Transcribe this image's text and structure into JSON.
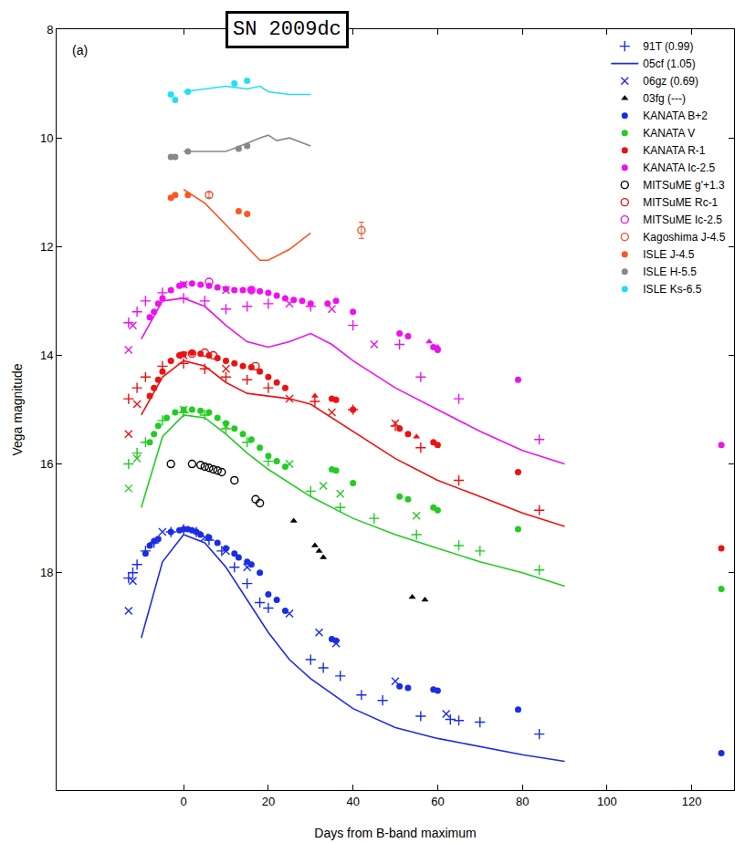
{
  "chart_data": {
    "type": "scatter",
    "title": "SN 2009dc",
    "annotations": [
      "(a)"
    ],
    "x_label": "Days from B-band maximum",
    "y_label": "Vega magnitude",
    "xlim": [
      -30,
      130
    ],
    "xticks": [
      0,
      20,
      40,
      60,
      80,
      100,
      120
    ],
    "ylim": [
      22,
      8
    ],
    "yticks": [
      8,
      10,
      12,
      14,
      16,
      18
    ],
    "grid": false,
    "legend": "upper right",
    "series": [
      {
        "name": "91T (0.99)",
        "marker": "cross-thin-open",
        "groups": [
          {
            "color": "#1a2de6",
            "x": [
              -13,
              -12,
              -11,
              -9,
              -7,
              -3,
              0,
              3,
              6,
              9,
              12,
              15,
              18,
              20,
              30,
              33,
              37,
              42,
              47,
              56,
              63,
              65,
              70,
              84
            ],
            "values": [
              18.1,
              18.0,
              17.85,
              17.6,
              17.45,
              17.25,
              17.2,
              17.25,
              17.4,
              17.6,
              17.9,
              18.2,
              18.55,
              18.65,
              19.6,
              19.75,
              19.9,
              20.25,
              20.35,
              20.64,
              20.7,
              20.72,
              20.75,
              20.97
            ]
          },
          {
            "color": "#22cc22",
            "x": [
              -13,
              -11,
              -9,
              -5,
              0,
              5,
              10,
              15,
              20,
              30,
              37,
              45,
              55,
              65,
              70,
              84
            ],
            "values": [
              16.0,
              15.8,
              15.6,
              15.2,
              15.05,
              15.1,
              15.35,
              15.6,
              15.95,
              16.5,
              16.8,
              17.0,
              17.3,
              17.5,
              17.6,
              17.95
            ]
          },
          {
            "color": "#ee1111",
            "x": [
              -13,
              -11,
              -9,
              -5,
              0,
              5,
              10,
              15,
              20,
              31,
              40,
              50,
              56,
              65,
              84
            ],
            "values": [
              14.8,
              14.6,
              14.4,
              14.2,
              14.15,
              14.25,
              14.4,
              14.45,
              14.6,
              14.85,
              15.0,
              15.3,
              15.7,
              16.3,
              16.85
            ]
          },
          {
            "color": "#ee11ee",
            "x": [
              -13,
              -11,
              -9,
              -5,
              0,
              5,
              10,
              15,
              20,
              30,
              40,
              51,
              56,
              65,
              84
            ],
            "values": [
              13.4,
              13.2,
              13.0,
              12.85,
              12.95,
              13.0,
              13.15,
              13.1,
              13.05,
              13.1,
              13.45,
              13.8,
              14.4,
              14.8,
              15.55
            ]
          }
        ]
      },
      {
        "name": "05cf (1.05)",
        "line_style": "solid",
        "groups": [
          {
            "color": "#1a2de6",
            "x": [
              -10,
              -5,
              0,
              5,
              10,
              15,
              20,
              25,
              30,
              40,
              50,
              60,
              70,
              80,
              90
            ],
            "values": [
              19.2,
              17.8,
              17.3,
              17.45,
              17.9,
              18.5,
              19.1,
              19.6,
              19.95,
              20.5,
              20.85,
              21.05,
              21.2,
              21.35,
              21.47
            ]
          },
          {
            "color": "#22cc22",
            "x": [
              -10,
              -5,
              0,
              5,
              10,
              15,
              20,
              25,
              30,
              40,
              50,
              60,
              70,
              80,
              90
            ],
            "values": [
              16.8,
              15.5,
              15.1,
              15.15,
              15.45,
              15.8,
              16.1,
              16.35,
              16.6,
              17.0,
              17.3,
              17.55,
              17.8,
              18.0,
              18.25
            ]
          },
          {
            "color": "#ee1111",
            "x": [
              -10,
              -5,
              0,
              5,
              10,
              15,
              20,
              25,
              30,
              40,
              50,
              60,
              70,
              80,
              90
            ],
            "values": [
              15.1,
              14.4,
              14.1,
              14.2,
              14.5,
              14.7,
              14.75,
              14.8,
              14.9,
              15.4,
              15.9,
              16.3,
              16.6,
              16.9,
              17.15
            ]
          },
          {
            "color": "#ee11ee",
            "x": [
              -10,
              -5,
              0,
              5,
              10,
              15,
              20,
              25,
              30,
              35,
              40,
              50,
              60,
              70,
              80,
              90
            ],
            "values": [
              13.7,
              13.0,
              12.95,
              13.1,
              13.45,
              13.75,
              13.85,
              13.75,
              13.6,
              13.8,
              14.1,
              14.6,
              15.0,
              15.4,
              15.75,
              16.0
            ]
          },
          {
            "color": "#ff5522",
            "x": [
              0,
              5,
              10,
              15,
              18,
              20,
              25,
              30
            ],
            "values": [
              10.95,
              11.2,
              11.6,
              12.0,
              12.25,
              12.25,
              12.05,
              11.75
            ]
          },
          {
            "color": "#888888",
            "x": [
              0,
              5,
              10,
              15,
              18,
              20,
              22,
              25,
              30
            ],
            "values": [
              10.25,
              10.25,
              10.25,
              10.1,
              10.0,
              9.95,
              10.05,
              10.0,
              10.15
            ]
          },
          {
            "color": "#22e0f0",
            "x": [
              0,
              5,
              10,
              15,
              18,
              20,
              25,
              30
            ],
            "values": [
              9.15,
              9.1,
              9.05,
              9.1,
              9.05,
              9.15,
              9.2,
              9.2
            ]
          }
        ]
      },
      {
        "name": "06gz (0.69)",
        "marker": "x-thin-open",
        "groups": [
          {
            "color": "#1a2de6",
            "x": [
              -13,
              -12,
              -5,
              5,
              10,
              15,
              25,
              32,
              36,
              50,
              62
            ],
            "values": [
              18.7,
              18.15,
              17.25,
              17.35,
              17.6,
              17.9,
              18.75,
              19.1,
              19.3,
              20.0,
              20.6
            ]
          },
          {
            "color": "#22cc22",
            "x": [
              -13,
              -11,
              0,
              10,
              25,
              33,
              37,
              55
            ],
            "values": [
              16.45,
              15.9,
              15.0,
              15.3,
              16.0,
              16.4,
              16.55,
              16.95
            ]
          },
          {
            "color": "#ee1111",
            "x": [
              -13,
              -11,
              0,
              10,
              25,
              35,
              50
            ],
            "values": [
              15.45,
              14.9,
              14.0,
              14.25,
              14.8,
              15.05,
              15.25
            ]
          },
          {
            "color": "#ee11ee",
            "x": [
              -13,
              -12,
              0,
              10,
              25,
              35,
              45
            ],
            "values": [
              13.9,
              13.45,
              12.7,
              12.8,
              13.05,
              13.15,
              13.8
            ]
          }
        ]
      },
      {
        "name": "03fg (---)",
        "marker": "triangle-up",
        "groups": [
          {
            "color": "#000000",
            "x": [
              26,
              31,
              32,
              33,
              54,
              57
            ],
            "values": [
              17.05,
              17.5,
              17.6,
              17.72,
              18.45,
              18.5
            ]
          },
          {
            "color": "#ee1111",
            "x": [
              31,
              55
            ],
            "values": [
              14.75,
              15.5
            ]
          },
          {
            "color": "#ee11ee",
            "x": [
              58,
              60
            ],
            "values": [
              13.75,
              13.85
            ]
          }
        ]
      },
      {
        "name": "KANATA B+2",
        "marker": "circle",
        "groups": [
          {
            "color": "#1a2de6",
            "x": [
              -9,
              -8,
              -7,
              -6,
              -3,
              -1,
              0,
              1,
              2,
              3,
              4,
              6,
              8,
              10,
              12,
              13,
              15,
              16,
              18,
              20,
              22,
              24,
              35,
              36,
              51,
              53,
              59,
              60,
              79,
              127
            ],
            "values": [
              17.65,
              17.5,
              17.42,
              17.38,
              17.25,
              17.22,
              17.2,
              17.2,
              17.22,
              17.25,
              17.3,
              17.35,
              17.45,
              17.55,
              17.65,
              17.72,
              17.8,
              17.85,
              18.0,
              18.4,
              18.5,
              18.7,
              19.22,
              19.25,
              20.09,
              20.12,
              20.15,
              20.17,
              20.52,
              21.32
            ]
          }
        ]
      },
      {
        "name": "KANATA V",
        "marker": "circle",
        "groups": [
          {
            "color": "#22cc22",
            "x": [
              -8,
              -7,
              -6,
              -4,
              -2,
              0,
              2,
              4,
              6,
              8,
              10,
              12,
              14,
              16,
              18,
              20,
              22,
              24,
              35,
              36,
              40,
              51,
              53,
              59,
              60,
              79,
              127
            ],
            "values": [
              15.6,
              15.45,
              15.3,
              15.15,
              15.05,
              15.0,
              15.0,
              15.02,
              15.05,
              15.15,
              15.25,
              15.35,
              15.45,
              15.55,
              15.7,
              15.85,
              15.95,
              16.05,
              16.1,
              16.12,
              16.35,
              16.6,
              16.65,
              16.8,
              16.85,
              17.2,
              18.3
            ]
          }
        ]
      },
      {
        "name": "KANATA R-1",
        "marker": "circle",
        "groups": [
          {
            "color": "#ee1111",
            "x": [
              -8,
              -7,
              -6,
              -5,
              -3,
              -1,
              0,
              2,
              4,
              6,
              8,
              10,
              12,
              14,
              16,
              18,
              20,
              22,
              24,
              35,
              36,
              40,
              51,
              53,
              59,
              60,
              79,
              127
            ],
            "values": [
              14.75,
              14.6,
              14.45,
              14.3,
              14.1,
              14.0,
              13.98,
              13.95,
              13.97,
              14.0,
              14.05,
              14.1,
              14.15,
              14.2,
              14.22,
              14.3,
              14.4,
              14.5,
              14.6,
              14.8,
              14.82,
              15.0,
              15.35,
              15.45,
              15.6,
              15.65,
              16.15,
              17.55
            ]
          }
        ]
      },
      {
        "name": "KANATA Ic-2.5",
        "marker": "circle",
        "groups": [
          {
            "color": "#ee11ee",
            "x": [
              -8,
              -7,
              -6,
              -5,
              -3,
              -1,
              0,
              2,
              4,
              6,
              8,
              10,
              12,
              14,
              16,
              18,
              20,
              22,
              24,
              26,
              28,
              30,
              34,
              36,
              40,
              51,
              53,
              59,
              60,
              79,
              127
            ],
            "values": [
              13.3,
              13.2,
              13.05,
              12.95,
              12.8,
              12.72,
              12.7,
              12.68,
              12.7,
              12.72,
              12.75,
              12.78,
              12.8,
              12.8,
              12.8,
              12.82,
              12.85,
              12.9,
              12.95,
              12.98,
              13.0,
              13.05,
              13.05,
              13.0,
              13.2,
              13.6,
              13.65,
              13.85,
              13.9,
              14.45,
              15.65
            ]
          }
        ]
      },
      {
        "name": "MITSuME g'+1.3",
        "marker": "circle-open",
        "groups": [
          {
            "color": "#000000",
            "x": [
              -3,
              2,
              4,
              5,
              6,
              7,
              8,
              9,
              12,
              17,
              18
            ],
            "values": [
              16.0,
              16.0,
              16.02,
              16.05,
              16.07,
              16.1,
              16.12,
              16.15,
              16.3,
              16.65,
              16.72
            ]
          }
        ]
      },
      {
        "name": "MITSuME Rc-1",
        "marker": "circle-open",
        "groups": [
          {
            "color": "#ee1111",
            "x": [
              2,
              5,
              7,
              17
            ],
            "values": [
              13.97,
              13.95,
              14.0,
              14.2
            ]
          }
        ]
      },
      {
        "name": "MITSuME Ic-2.5",
        "marker": "circle-open",
        "groups": [
          {
            "color": "#ee11ee",
            "x": [
              6,
              16
            ],
            "values": [
              12.65,
              12.8
            ]
          }
        ]
      },
      {
        "name": "Kagoshima J-4.5",
        "marker": "circle-open",
        "groups": [
          {
            "color": "#ee5533",
            "x": [
              6,
              42
            ],
            "values": [
              11.05,
              11.7
            ],
            "errors": [
              0.05,
              0.15
            ]
          }
        ]
      },
      {
        "name": "ISLE J-4.5",
        "marker": "circle",
        "groups": [
          {
            "color": "#ff5522",
            "x": [
              -3,
              -2,
              1,
              13,
              15
            ],
            "values": [
              11.1,
              11.05,
              11.05,
              11.35,
              11.4
            ]
          }
        ]
      },
      {
        "name": "ISLE H-5.5",
        "marker": "circle",
        "groups": [
          {
            "color": "#888888",
            "x": [
              -3,
              -2,
              1,
              13,
              15
            ],
            "values": [
              10.35,
              10.35,
              10.25,
              10.2,
              10.15
            ]
          }
        ]
      },
      {
        "name": "ISLE Ks-6.5",
        "marker": "circle",
        "groups": [
          {
            "color": "#22e0f0",
            "x": [
              -3,
              -2,
              1,
              12,
              15
            ],
            "values": [
              9.2,
              9.3,
              9.15,
              9.0,
              8.95
            ]
          }
        ]
      }
    ]
  }
}
